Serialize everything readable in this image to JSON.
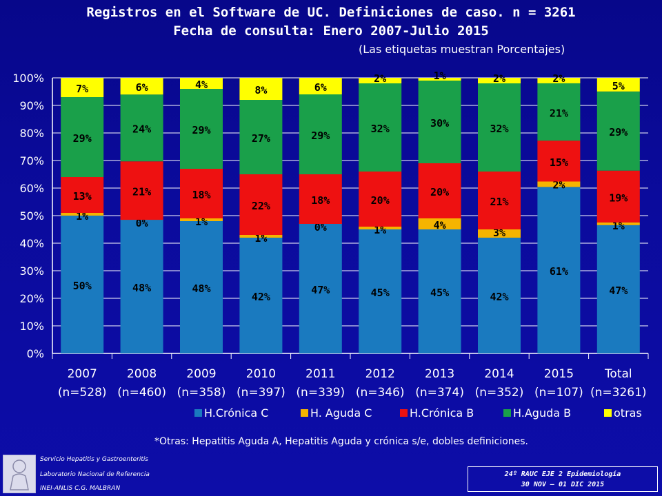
{
  "header": {
    "title_line1": "Registros en el Software de UC. Definiciones de caso. n = 3261",
    "title_line2": "Fecha de consulta: Enero 2007-Julio 2015",
    "subtitle": "(Las etiquetas muestran Porcentajes)"
  },
  "chart_data": {
    "type": "bar",
    "stacked": true,
    "ylim": [
      0,
      100
    ],
    "yticks": [
      "0%",
      "10%",
      "20%",
      "30%",
      "40%",
      "50%",
      "60%",
      "70%",
      "80%",
      "90%",
      "100%"
    ],
    "grid": true,
    "legend_position": "bottom",
    "categories": [
      "2007",
      "2008",
      "2009",
      "2010",
      "2011",
      "2012",
      "2013",
      "2014",
      "2015",
      "Total"
    ],
    "category_sublabels": [
      "(n=528)",
      "(n=460)",
      "(n=358)",
      "(n=397)",
      "(n=339)",
      "(n=346)",
      "(n=374)",
      "(n=352)",
      "(n=107)",
      "(n=3261)"
    ],
    "series": [
      {
        "name": "H.Crónica C",
        "color": "#1a7abf",
        "values": [
          50,
          48,
          48,
          42,
          47,
          45,
          45,
          42,
          61,
          47
        ],
        "labels": [
          "50%",
          "48%",
          "48%",
          "42%",
          "47%",
          "45%",
          "45%",
          "42%",
          "61%",
          "47%"
        ]
      },
      {
        "name": "H. Aguda C",
        "color": "#f5b400",
        "values": [
          1,
          0,
          1,
          1,
          0,
          1,
          4,
          3,
          2,
          1
        ],
        "labels": [
          "1%",
          "0%",
          "1%",
          "1%",
          "0%",
          "1%",
          "4%",
          "3%",
          "2%",
          "1%"
        ]
      },
      {
        "name": "H.Crónica B",
        "color": "#ee1111",
        "values": [
          13,
          21,
          18,
          22,
          18,
          20,
          20,
          21,
          15,
          19
        ],
        "labels": [
          "13%",
          "21%",
          "18%",
          "22%",
          "18%",
          "20%",
          "20%",
          "21%",
          "15%",
          "19%"
        ]
      },
      {
        "name": "H.Aguda B",
        "color": "#1aa04a",
        "values": [
          29,
          24,
          29,
          27,
          29,
          32,
          30,
          32,
          21,
          29
        ],
        "labels": [
          "29%",
          "24%",
          "29%",
          "27%",
          "29%",
          "32%",
          "30%",
          "32%",
          "21%",
          "29%"
        ]
      },
      {
        "name": "otras",
        "color": "#ffff00",
        "values": [
          7,
          6,
          4,
          8,
          6,
          2,
          1,
          2,
          2,
          5
        ],
        "labels": [
          "7%",
          "6%",
          "4%",
          "8%",
          "6%",
          "2%",
          "1%",
          "2%",
          "2%",
          "5%"
        ]
      }
    ]
  },
  "footnote": "*Otras: Hepatitis Aguda A, Hepatitis Aguda y crónica s/e, dobles definiciones.",
  "institution": {
    "line1": "Servicio Hepatitis y Gastroenteritis",
    "line2": "Laboratorio Nacional de Referencia",
    "line3": "INEI-ANLIS C.G. MALBRAN"
  },
  "event": {
    "line1": "24º RAUC EJE 2 Epidemiología",
    "line2": "30 NOV – 01 DIC 2015"
  }
}
